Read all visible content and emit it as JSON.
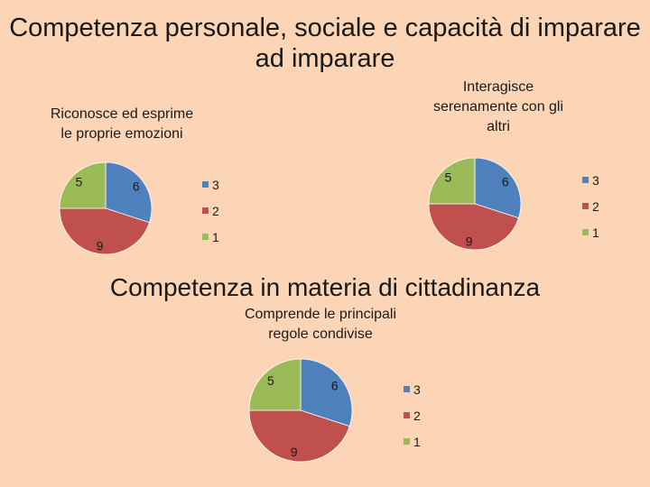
{
  "slide": {
    "title_line1": "Competenza personale, sociale e capacità di imparare",
    "title_line2": "ad imparare",
    "section_title": "Competenza in materia di cittadinanza"
  },
  "colors": {
    "3": "#4f81bd",
    "2": "#c0504d",
    "1": "#9bbb59"
  },
  "chart_data": [
    {
      "type": "pie",
      "title_lines": [
        "Riconosce ed esprime",
        "le proprie emozioni"
      ],
      "categories": [
        "3",
        "2",
        "1"
      ],
      "values": [
        6,
        9,
        5
      ],
      "legend": [
        "3",
        "2",
        "1"
      ],
      "legend_position": "right"
    },
    {
      "type": "pie",
      "title_lines": [
        "Interagisce",
        "serenamente con gli",
        "altri"
      ],
      "categories": [
        "3",
        "2",
        "1"
      ],
      "values": [
        6,
        9,
        5
      ],
      "legend": [
        "3",
        "2",
        "1"
      ],
      "legend_position": "right"
    },
    {
      "type": "pie",
      "title_lines": [
        "Comprende le principali",
        "regole condivise"
      ],
      "categories": [
        "3",
        "2",
        "1"
      ],
      "values": [
        6,
        9,
        5
      ],
      "legend": [
        "3",
        "2",
        "1"
      ],
      "legend_position": "right"
    }
  ]
}
